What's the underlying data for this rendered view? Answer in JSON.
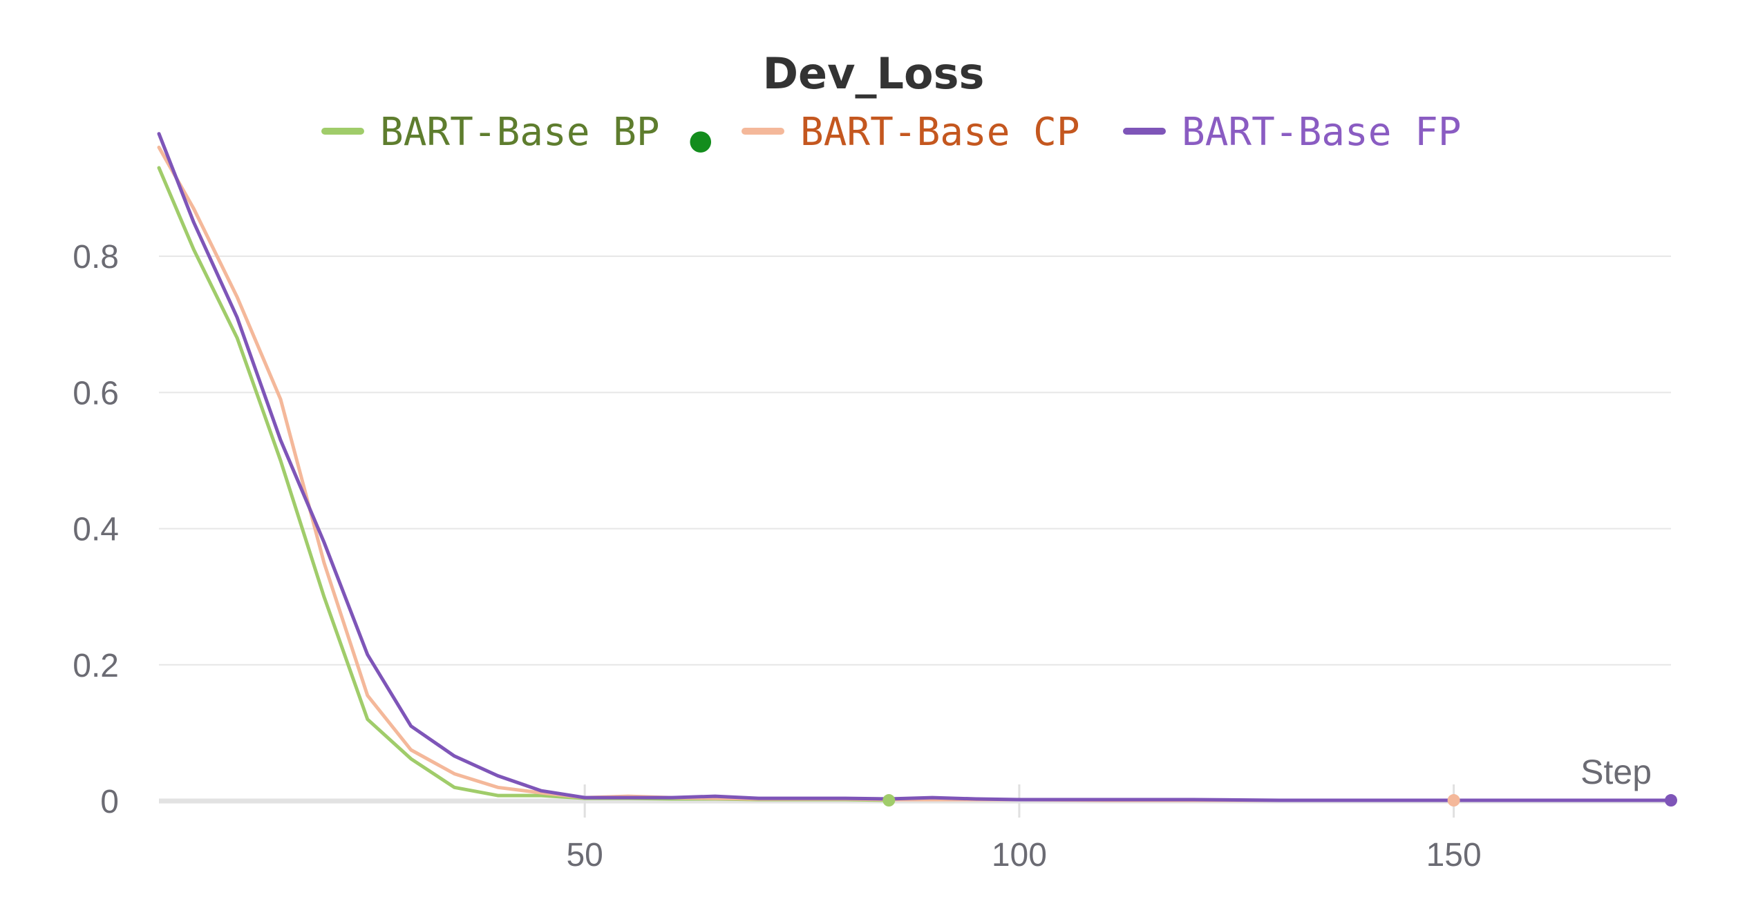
{
  "chart_data": {
    "type": "line",
    "title": "Dev_Loss",
    "xlabel": "Step",
    "ylabel": "",
    "xlim": [
      1,
      175
    ],
    "ylim": [
      0,
      1.0
    ],
    "x_ticks": [
      50,
      100,
      150
    ],
    "y_ticks": [
      0,
      0.2,
      0.4,
      0.6,
      0.8
    ],
    "y_tick_labels": [
      "0",
      "0.2",
      "0.4",
      "0.6",
      "0.8"
    ],
    "x_tick_labels": [
      "50",
      "100",
      "150"
    ],
    "grid": true,
    "legend": "top-center",
    "series": [
      {
        "name": "BART-Base BP",
        "color": "#a0cc6a",
        "legend_text_color": "#5e7d2e",
        "legend_marker": "●",
        "legend_marker_color": "#138d1d",
        "end_marker": "circle",
        "x": [
          1,
          5,
          10,
          15,
          20,
          25,
          30,
          35,
          40,
          45,
          50,
          55,
          60,
          65,
          70,
          75,
          80,
          85
        ],
        "y": [
          0.93,
          0.81,
          0.68,
          0.5,
          0.3,
          0.12,
          0.062,
          0.02,
          0.008,
          0.008,
          0.004,
          0.004,
          0.003,
          0.003,
          0.002,
          0.002,
          0.002,
          0.001
        ]
      },
      {
        "name": "BART-Base CP",
        "color": "#f4b89a",
        "legend_text_color": "#c4571f",
        "legend_marker": "",
        "legend_marker_color": "",
        "end_marker": "circle",
        "x": [
          1,
          5,
          10,
          15,
          20,
          25,
          30,
          35,
          40,
          45,
          50,
          55,
          60,
          65,
          70,
          75,
          80,
          85,
          90,
          95,
          100,
          110,
          120,
          130,
          140,
          150
        ],
        "y": [
          0.96,
          0.87,
          0.74,
          0.59,
          0.35,
          0.155,
          0.075,
          0.04,
          0.02,
          0.012,
          0.005,
          0.007,
          0.005,
          0.004,
          0.003,
          0.003,
          0.003,
          0.002,
          0.002,
          0.002,
          0.002,
          0.001,
          0.001,
          0.001,
          0.001,
          0.001
        ]
      },
      {
        "name": "BART-Base FP",
        "color": "#7e55b8",
        "legend_text_color": "#8a5cc2",
        "legend_marker": "",
        "legend_marker_color": "",
        "end_marker": "circle",
        "x": [
          1,
          5,
          10,
          15,
          20,
          25,
          30,
          35,
          40,
          45,
          50,
          55,
          60,
          65,
          70,
          75,
          80,
          85,
          90,
          95,
          100,
          110,
          120,
          130,
          140,
          150,
          160,
          170,
          175
        ],
        "y": [
          0.98,
          0.85,
          0.71,
          0.53,
          0.38,
          0.215,
          0.11,
          0.066,
          0.037,
          0.015,
          0.005,
          0.005,
          0.005,
          0.007,
          0.004,
          0.004,
          0.004,
          0.003,
          0.005,
          0.003,
          0.002,
          0.002,
          0.002,
          0.001,
          0.001,
          0.001,
          0.001,
          0.001,
          0.001
        ]
      }
    ]
  }
}
